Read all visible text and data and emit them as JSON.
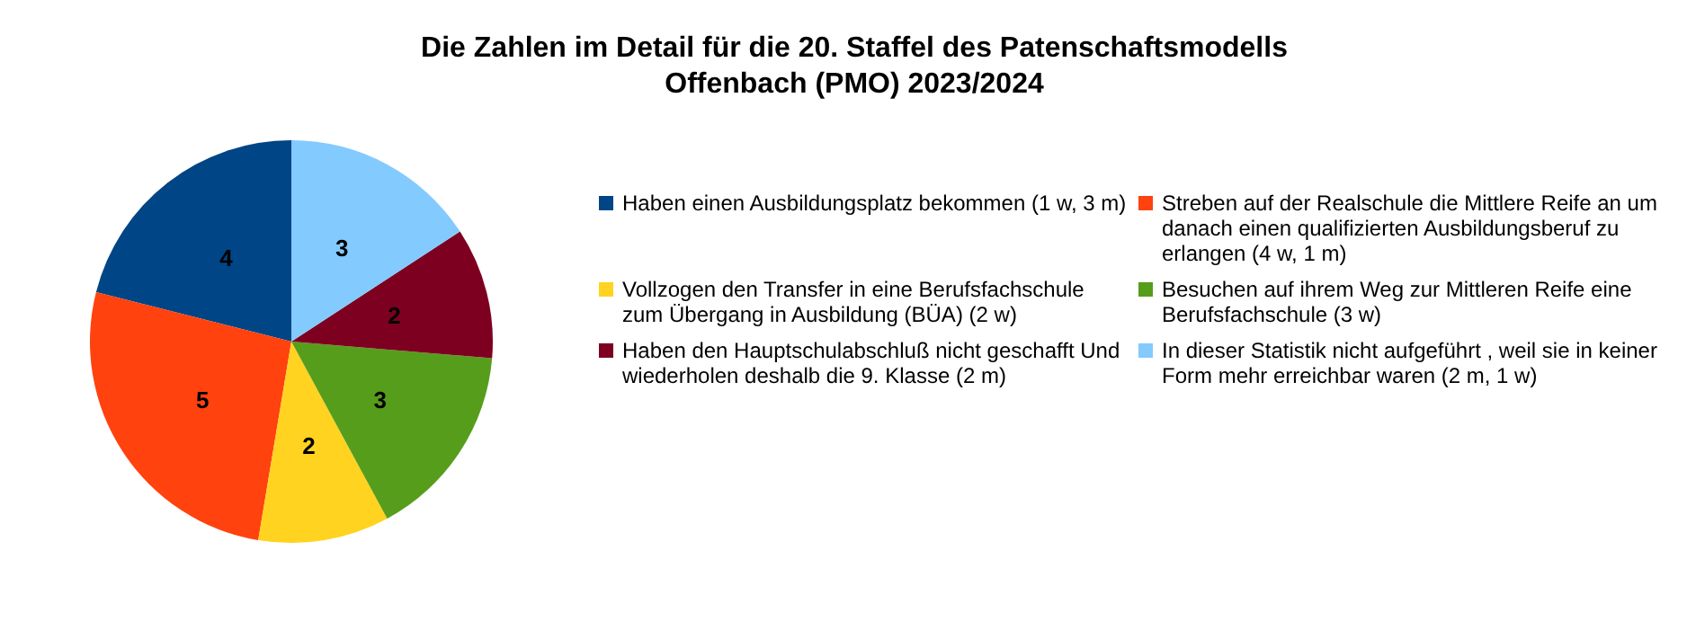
{
  "chart_data": {
    "type": "pie",
    "title": "Die Zahlen im Detail für die 20. Staffel des Patenschaftsmodells\nOffenbach (PMO) 2023/2024",
    "categories": [
      "Haben einen Ausbildungsplatz bekommen (1 w, 3 m)",
      "Streben auf der Realschule die Mittlere Reife an um danach einen qualifizierten Ausbildungsberuf zu erlangen (4 w, 1 m)",
      "Vollzogen den Transfer in eine Berufsfachschule zum Übergang in Ausbildung (BÜA) (2 w)",
      "Besuchen auf ihrem Weg zur Mittleren Reife eine Berufsfachschule (3 w)",
      "Haben den Hauptschulabschluß nicht geschafft Und wiederholen deshalb die 9. Klasse (2 m)",
      "In dieser Statistik nicht aufgeführt , weil sie in keiner Form mehr erreichbar waren (2 m, 1 w)"
    ],
    "values": [
      4,
      5,
      2,
      3,
      2,
      3
    ],
    "colors": [
      "#004586",
      "#ff420e",
      "#ffd320",
      "#579d1c",
      "#7e0021",
      "#83caff"
    ],
    "data_labels": true,
    "legend": "right"
  }
}
